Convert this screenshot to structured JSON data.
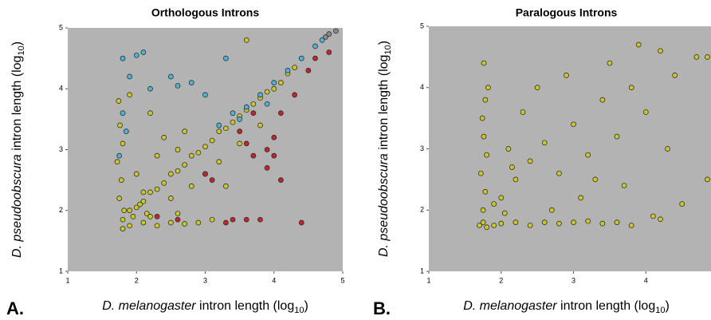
{
  "chart_data": [
    {
      "type": "scatter",
      "title": "Orthologous Introns",
      "panel_label": "A.",
      "x_label": {
        "species": "D. melanogaster",
        "text": " intron length (log",
        "sub": "10",
        "close": ")"
      },
      "y_label": {
        "species": "D. pseudoobscura",
        "text": " intron length (log",
        "sub": "10",
        "close": ")"
      },
      "xlim": [
        1,
        5
      ],
      "ylim": [
        1,
        5
      ],
      "xticks": [
        1,
        2,
        3,
        4,
        5
      ],
      "yticks": [
        1,
        2,
        3,
        4,
        5
      ],
      "background": "#b3b3b3",
      "series": [
        {
          "color": "#c8c62a",
          "x": [
            1.8,
            1.9,
            2.0,
            2.1,
            2.2,
            2.3,
            2.4,
            2.5,
            2.6,
            2.7,
            2.8,
            2.9,
            3.0,
            3.1,
            3.2,
            3.3,
            3.4,
            3.5,
            3.6,
            3.7,
            3.8,
            3.9,
            4.0,
            4.1,
            4.2,
            4.3,
            1.9,
            2.1,
            2.3,
            2.5,
            2.7,
            2.9,
            3.1,
            2.2,
            2.6,
            1.8,
            1.75,
            1.78,
            1.72,
            1.8,
            1.76,
            1.74,
            1.82,
            2.0,
            2.3,
            2.5,
            2.8,
            3.0,
            3.2,
            2.4,
            2.2,
            3.5,
            3.3,
            2.6,
            3.8,
            1.9,
            2.7,
            2.1,
            1.95,
            2.05,
            2.15,
            3.6
          ],
          "y": [
            1.85,
            2.0,
            2.05,
            2.15,
            2.3,
            2.35,
            2.45,
            2.6,
            2.65,
            2.75,
            2.9,
            2.95,
            3.05,
            3.15,
            3.3,
            3.35,
            3.45,
            3.55,
            3.65,
            3.75,
            3.85,
            3.95,
            4.0,
            4.1,
            4.25,
            4.35,
            1.75,
            1.8,
            1.75,
            1.8,
            1.78,
            1.8,
            1.85,
            1.9,
            1.95,
            1.7,
            2.2,
            2.5,
            2.8,
            3.1,
            3.4,
            3.8,
            2.0,
            2.6,
            2.9,
            2.2,
            2.4,
            2.6,
            2.8,
            3.2,
            3.6,
            3.1,
            2.4,
            3.0,
            3.4,
            3.9,
            3.3,
            2.3,
            1.9,
            2.1,
            1.95,
            4.8
          ]
        },
        {
          "color": "#4fb3d3",
          "x": [
            1.8,
            2.0,
            2.1,
            1.9,
            1.8,
            1.85,
            1.75,
            2.5,
            2.8,
            3.0,
            3.3,
            3.4,
            3.6,
            3.8,
            4.0,
            4.2,
            4.4,
            4.6,
            4.7,
            3.2,
            3.5,
            2.2,
            2.6,
            3.9
          ],
          "y": [
            4.5,
            4.55,
            4.6,
            4.2,
            3.6,
            3.3,
            2.9,
            4.2,
            4.1,
            3.9,
            4.5,
            3.6,
            3.7,
            3.9,
            4.1,
            4.3,
            4.5,
            4.7,
            4.8,
            3.4,
            3.5,
            4.0,
            4.05,
            3.75
          ]
        },
        {
          "color": "#c0272d",
          "x": [
            2.3,
            2.6,
            3.3,
            3.4,
            3.6,
            3.8,
            4.4,
            3.0,
            3.1,
            3.7,
            3.9,
            4.0,
            4.1,
            4.0,
            3.5,
            3.7,
            4.1,
            4.3,
            4.5,
            4.6,
            4.8,
            3.9,
            3.6
          ],
          "y": [
            1.9,
            1.85,
            1.8,
            1.85,
            1.85,
            1.85,
            1.8,
            2.6,
            2.5,
            2.9,
            3.0,
            2.9,
            2.5,
            3.2,
            3.3,
            3.6,
            3.6,
            3.9,
            4.3,
            4.5,
            4.6,
            2.7,
            3.1
          ]
        },
        {
          "color": "#8a8a8a",
          "x": [
            4.75,
            4.8,
            4.9
          ],
          "y": [
            4.85,
            4.9,
            4.95
          ]
        }
      ]
    },
    {
      "type": "scatter",
      "title": "Paralogous Introns",
      "panel_label": "B.",
      "x_label": {
        "species": "D. melanogaster",
        "text": " intron length (log",
        "sub": "10",
        "close": ")"
      },
      "y_label": {
        "species": "D. pseudoobscura",
        "text": " intron length (log",
        "sub": "10",
        "close": ")"
      },
      "xlim": [
        1,
        4.9
      ],
      "ylim": [
        1,
        5
      ],
      "xticks": [
        1,
        2,
        3,
        4
      ],
      "yticks": [
        1,
        2,
        3,
        4,
        5
      ],
      "background": "#b3b3b3",
      "series": [
        {
          "color": "#c8c62a",
          "x": [
            1.7,
            1.75,
            1.8,
            1.9,
            2.0,
            2.2,
            2.4,
            2.6,
            2.8,
            3.0,
            3.2,
            3.4,
            3.6,
            3.8,
            4.2,
            1.75,
            1.78,
            1.72,
            1.8,
            1.76,
            1.74,
            1.78,
            1.82,
            1.76,
            2.0,
            2.2,
            2.4,
            2.6,
            2.8,
            3.0,
            3.2,
            3.4,
            3.6,
            3.8,
            4.0,
            4.2,
            4.4,
            4.7,
            4.85,
            4.85,
            4.5,
            4.3,
            2.1,
            2.3,
            2.5,
            2.9,
            3.5,
            3.9,
            2.7,
            3.1,
            3.3,
            1.9,
            2.05,
            2.15,
            3.7,
            4.1
          ],
          "y": [
            1.75,
            1.8,
            1.72,
            1.75,
            1.78,
            1.8,
            1.75,
            1.8,
            1.78,
            1.8,
            1.82,
            1.78,
            1.8,
            1.75,
            1.85,
            2.0,
            2.3,
            2.6,
            2.9,
            3.2,
            3.5,
            3.8,
            4.0,
            4.4,
            2.2,
            2.5,
            2.8,
            3.1,
            2.6,
            3.4,
            2.9,
            3.8,
            3.2,
            4.0,
            3.6,
            4.6,
            4.2,
            4.5,
            4.5,
            2.5,
            2.1,
            3.0,
            3.0,
            3.6,
            4.0,
            4.2,
            4.4,
            4.7,
            2.0,
            2.2,
            2.5,
            2.1,
            1.95,
            2.7,
            2.4,
            1.9
          ]
        }
      ]
    }
  ]
}
